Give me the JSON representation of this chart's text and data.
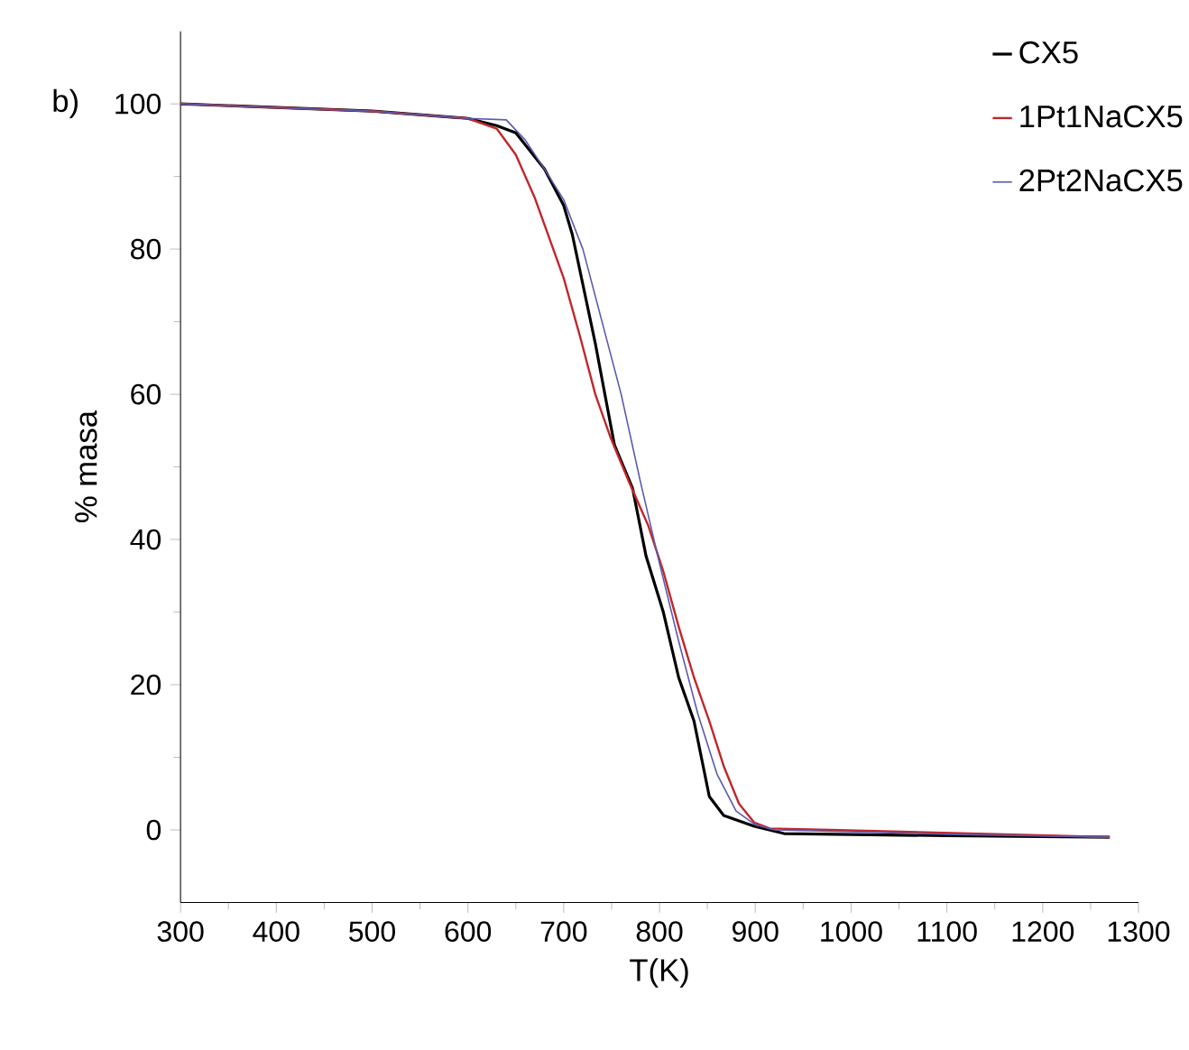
{
  "chart_data": {
    "type": "line",
    "xlabel": "T(K)",
    "ylabel": "% masa",
    "annotations": [
      "b)"
    ],
    "xlim": [
      300,
      1300
    ],
    "xticks": [
      300,
      400,
      500,
      600,
      700,
      800,
      900,
      1000,
      1100,
      1200,
      1300
    ],
    "ylim": [
      -10,
      110
    ],
    "yticks": [
      0,
      20,
      40,
      60,
      80,
      100
    ],
    "legend": "top right",
    "marker": "none",
    "line_style": "solid",
    "series": [
      {
        "name": "CX5",
        "color": "#000000",
        "x": [
          300,
          500,
          600,
          630,
          650,
          680,
          700,
          709,
          733,
          753,
          772,
          786,
          804,
          820,
          836,
          852,
          867,
          899,
          930,
          1100,
          1270
        ],
        "values": [
          100,
          99,
          98,
          97,
          96,
          91,
          86,
          82,
          67,
          53,
          47,
          37.7,
          30,
          21,
          15,
          4.6,
          2,
          0.5,
          -0.5,
          -0.8,
          -1
        ]
      },
      {
        "name": "1Pt1NaCX5",
        "color": "#c0272d",
        "x": [
          300,
          500,
          600,
          630,
          650,
          670,
          700,
          717,
          733,
          749,
          768,
          788,
          804,
          820,
          836,
          852,
          867,
          883,
          899,
          915,
          978,
          1270
        ],
        "values": [
          100,
          99,
          98,
          96.6,
          93,
          87,
          76,
          68,
          60,
          54,
          48,
          42,
          35.6,
          28,
          21,
          15,
          8.8,
          3.6,
          1,
          0.2,
          0,
          -1
        ]
      },
      {
        "name": "2Pt2NaCX5",
        "color": "#5a5aae",
        "x": [
          300,
          500,
          600,
          640,
          660,
          680,
          700,
          720,
          740,
          760,
          780,
          800,
          820,
          840,
          860,
          880,
          900,
          920,
          1100,
          1270
        ],
        "values": [
          100,
          99,
          98,
          97.8,
          95,
          91,
          86.8,
          80,
          70,
          60,
          48,
          36.7,
          26,
          16,
          7.7,
          2.6,
          0.7,
          0,
          -0.6,
          -1
        ]
      }
    ]
  }
}
